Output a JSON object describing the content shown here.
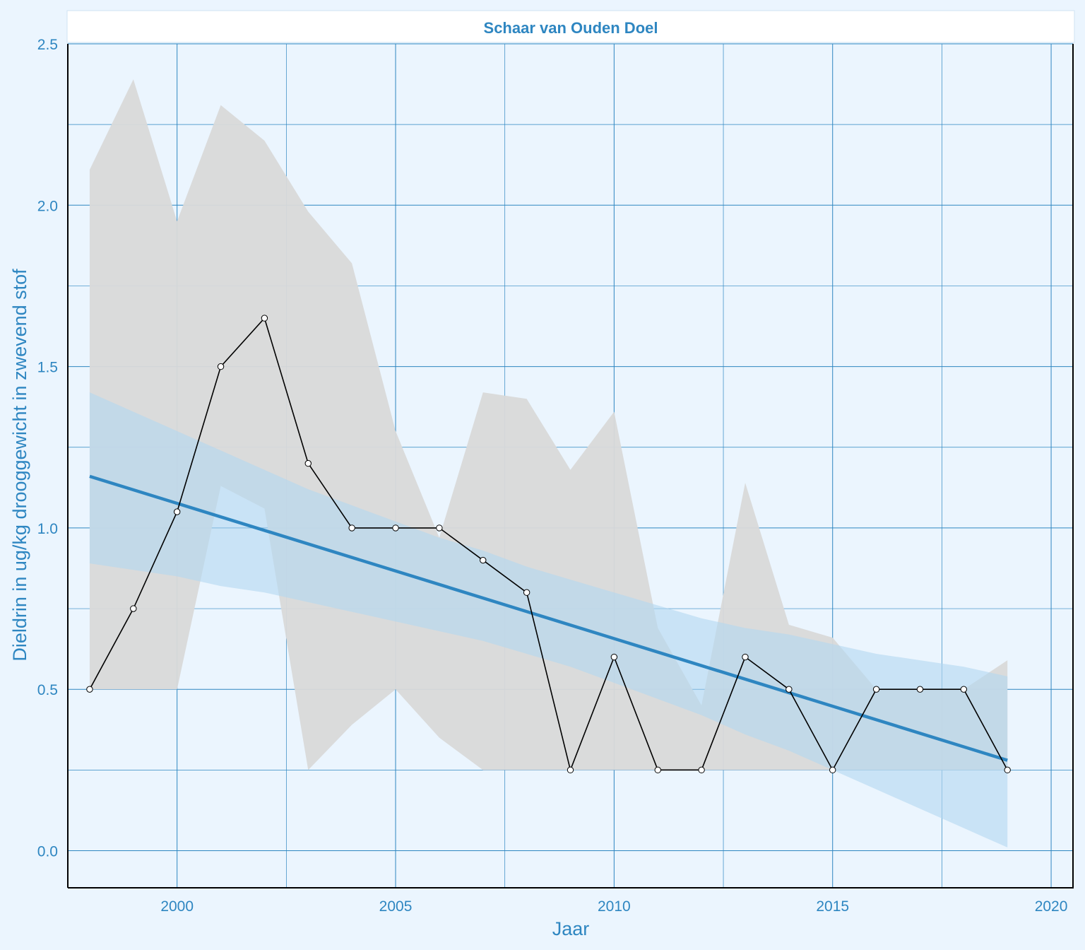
{
  "chart_data": {
    "type": "line",
    "title": "Schaar van Ouden Doel",
    "xlabel": "Jaar",
    "ylabel": "Dieldrin in ug/kg drooggewicht in zwevend stof",
    "xlim": [
      1997.5,
      2020.5
    ],
    "ylim": [
      -0.115,
      2.5
    ],
    "x_ticks": [
      2000,
      2005,
      2010,
      2015,
      2020
    ],
    "y_ticks": [
      0.0,
      0.5,
      1.0,
      1.5,
      2.0,
      2.5
    ],
    "y_tick_labels": [
      "0.0",
      "0.5",
      "1.0",
      "1.5",
      "2.0",
      "2.5"
    ],
    "grid": true,
    "colors": {
      "background": "#ebf5fe",
      "grid": "#2e86c1",
      "text": "#2e86c1",
      "trend": "#2e86c1",
      "trend_band": "#b3d7f0",
      "range_band": "#d9d9d9",
      "series_line": "#000000",
      "marker_fill": "#ffffff"
    },
    "series": [
      {
        "kind": "mean",
        "x": [
          1998,
          1999,
          2000,
          2001,
          2002,
          2003,
          2004,
          2005,
          2006,
          2007,
          2008,
          2009,
          2010,
          2011,
          2012,
          2013,
          2014,
          2015,
          2016,
          2017,
          2018,
          2019
        ],
        "y": [
          0.5,
          0.75,
          1.05,
          1.5,
          1.65,
          1.2,
          1.0,
          1.0,
          1.0,
          0.9,
          0.8,
          0.25,
          0.6,
          0.25,
          0.25,
          0.6,
          0.5,
          0.25,
          0.5,
          0.5,
          0.5,
          0.25
        ]
      },
      {
        "kind": "range_band",
        "x": [
          1998,
          1999,
          2000,
          2001,
          2002,
          2003,
          2004,
          2005,
          2006,
          2007,
          2008,
          2009,
          2010,
          2011,
          2012,
          2013,
          2014,
          2015,
          2016,
          2017,
          2018,
          2019
        ],
        "upper": [
          2.11,
          2.39,
          1.95,
          2.31,
          2.2,
          1.98,
          1.82,
          1.3,
          0.97,
          1.42,
          1.4,
          1.18,
          1.36,
          0.69,
          0.45,
          1.14,
          0.7,
          0.66,
          0.5,
          0.5,
          0.5,
          0.59
        ],
        "lower": [
          0.5,
          0.5,
          0.5,
          1.13,
          1.06,
          0.25,
          0.39,
          0.5,
          0.35,
          0.25,
          0.25,
          0.25,
          0.25,
          0.25,
          0.25,
          0.25,
          0.25,
          0.25,
          0.25,
          0.25,
          0.25,
          0.25
        ]
      },
      {
        "kind": "trend",
        "x": [
          1998,
          2019
        ],
        "y": [
          1.16,
          0.28
        ]
      },
      {
        "kind": "trend_band",
        "x": [
          1998,
          1999,
          2000,
          2001,
          2002,
          2003,
          2004,
          2005,
          2006,
          2007,
          2008,
          2009,
          2010,
          2011,
          2012,
          2013,
          2014,
          2015,
          2016,
          2017,
          2018,
          2019
        ],
        "upper": [
          1.42,
          1.36,
          1.3,
          1.24,
          1.18,
          1.12,
          1.07,
          1.02,
          0.97,
          0.93,
          0.88,
          0.84,
          0.8,
          0.76,
          0.72,
          0.69,
          0.67,
          0.64,
          0.61,
          0.59,
          0.57,
          0.54
        ],
        "lower": [
          0.89,
          0.87,
          0.85,
          0.82,
          0.8,
          0.77,
          0.74,
          0.71,
          0.68,
          0.65,
          0.61,
          0.57,
          0.52,
          0.47,
          0.42,
          0.36,
          0.31,
          0.25,
          0.19,
          0.13,
          0.07,
          0.01
        ]
      }
    ]
  }
}
